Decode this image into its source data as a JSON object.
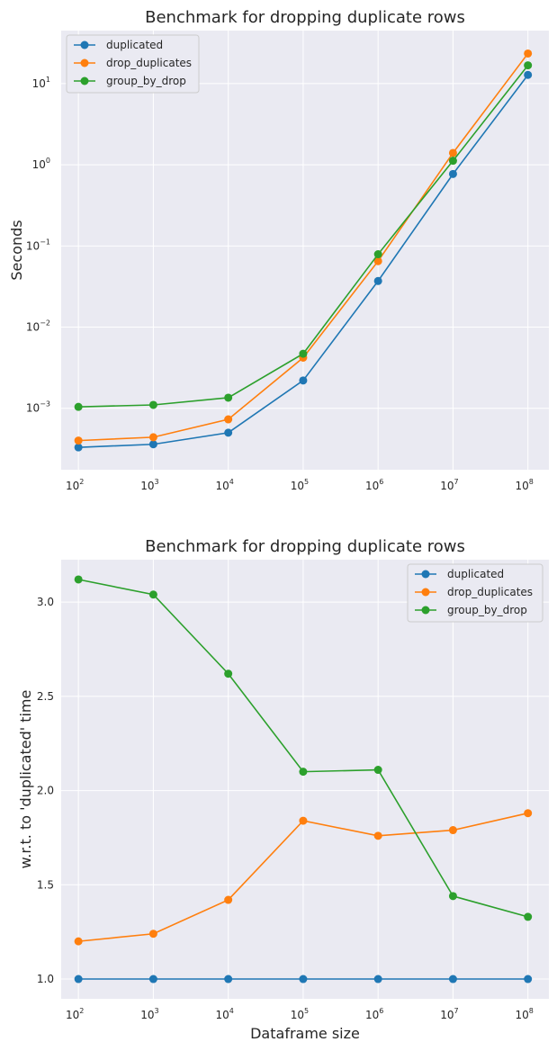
{
  "chart_data": [
    {
      "type": "line",
      "title": "Benchmark for dropping duplicate rows",
      "xlabel": "",
      "ylabel": "Seconds",
      "xscale": "log",
      "yscale": "log",
      "x_exponents": [
        2,
        3,
        4,
        5,
        6,
        7,
        8
      ],
      "x": [
        100,
        1000,
        10000,
        100000,
        1000000,
        10000000,
        100000000
      ],
      "y_tick_exponents": [
        -3,
        -2,
        -1,
        0,
        1
      ],
      "ylim": [
        0.000175,
        45
      ],
      "legend_location": "upper-left",
      "grid": true,
      "series": [
        {
          "name": "duplicated",
          "color": "#1f77b4",
          "values": [
            0.00033,
            0.00036,
            0.0005,
            0.0022,
            0.037,
            0.77,
            12.8
          ]
        },
        {
          "name": "drop_duplicates",
          "color": "#ff7f0e",
          "values": [
            0.0004,
            0.00044,
            0.00073,
            0.0042,
            0.065,
            1.4,
            23.5
          ]
        },
        {
          "name": "group_by_drop",
          "color": "#2ca02c",
          "values": [
            0.00104,
            0.0011,
            0.00135,
            0.0047,
            0.079,
            1.12,
            16.8
          ]
        }
      ]
    },
    {
      "type": "line",
      "title": "Benchmark for dropping duplicate rows",
      "xlabel": "Dataframe size",
      "ylabel": "w.r.t. to 'duplicated' time",
      "xscale": "log",
      "yscale": "linear",
      "x_exponents": [
        2,
        3,
        4,
        5,
        6,
        7,
        8
      ],
      "x": [
        100,
        1000,
        10000,
        100000,
        1000000,
        10000000,
        100000000
      ],
      "y_ticks": [
        "1.0",
        "1.5",
        "2.0",
        "2.5",
        "3.0"
      ],
      "y_tick_values": [
        1.0,
        1.5,
        2.0,
        2.5,
        3.0
      ],
      "ylim": [
        0.895,
        3.225
      ],
      "legend_location": "upper-right",
      "grid": true,
      "series": [
        {
          "name": "duplicated",
          "color": "#1f77b4",
          "values": [
            1.0,
            1.0,
            1.0,
            1.0,
            1.0,
            1.0,
            1.0
          ]
        },
        {
          "name": "drop_duplicates",
          "color": "#ff7f0e",
          "values": [
            1.2,
            1.24,
            1.42,
            1.84,
            1.76,
            1.79,
            1.88
          ]
        },
        {
          "name": "group_by_drop",
          "color": "#2ca02c",
          "values": [
            3.12,
            3.04,
            2.62,
            2.1,
            2.11,
            1.44,
            1.33
          ]
        }
      ]
    }
  ]
}
